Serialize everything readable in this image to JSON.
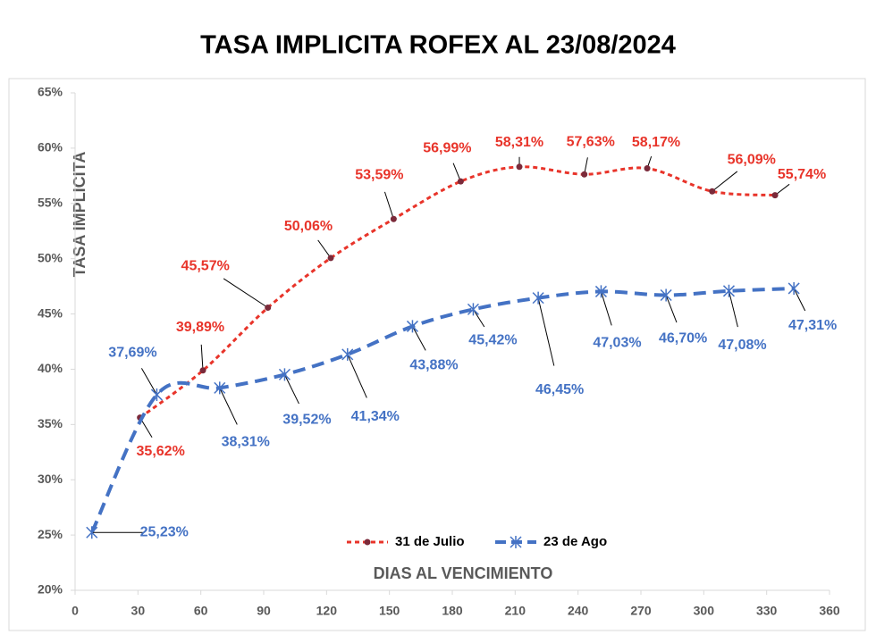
{
  "chart_data": {
    "type": "line",
    "title": "TASA IMPLICITA ROFEX AL 23/08/2024",
    "x_label": "DIAS AL VENCIMIENTO",
    "y_label": "TASA IMPLICITA",
    "xlim": [
      0,
      360
    ],
    "xticks": [
      0,
      30,
      60,
      90,
      120,
      150,
      180,
      210,
      240,
      270,
      300,
      330,
      360
    ],
    "ylim": [
      20,
      65
    ],
    "yticks": [
      {
        "value": 20,
        "label": "20%"
      },
      {
        "value": 25,
        "label": "25%"
      },
      {
        "value": 30,
        "label": "30%"
      },
      {
        "value": 35,
        "label": "35%"
      },
      {
        "value": 40,
        "label": "40%"
      },
      {
        "value": 45,
        "label": "45%"
      },
      {
        "value": 50,
        "label": "50%"
      },
      {
        "value": 55,
        "label": "55%"
      },
      {
        "value": 60,
        "label": "60%"
      },
      {
        "value": 65,
        "label": "65%"
      }
    ],
    "legend": "bottom",
    "series": [
      {
        "name": "31 de Julio",
        "color": "#e8342a",
        "x": [
          31,
          61,
          92,
          122,
          152,
          184,
          212,
          243,
          273,
          304,
          334
        ],
        "values": [
          35.62,
          39.89,
          45.57,
          50.06,
          53.59,
          56.99,
          58.31,
          57.63,
          58.17,
          56.09,
          55.74
        ],
        "value_labels": [
          "35,62%",
          "39,89%",
          "45,57%",
          "50,06%",
          "53,59%",
          "56,99%",
          "58,31%",
          "57,63%",
          "58,17%",
          "56,09%",
          "55,74%"
        ]
      },
      {
        "name": "23 de Ago",
        "color": "#4472c4",
        "x": [
          8,
          39,
          69,
          100,
          130,
          161,
          190,
          221,
          251,
          282,
          312,
          343
        ],
        "values": [
          25.23,
          37.69,
          38.31,
          39.52,
          41.34,
          43.88,
          45.42,
          46.45,
          47.03,
          46.7,
          47.08,
          47.31
        ],
        "value_labels": [
          "25,23%",
          "37,69%",
          "38,31%",
          "39,52%",
          "41,34%",
          "43,88%",
          "45,42%",
          "46,45%",
          "47,03%",
          "46,70%",
          "47,08%",
          "47,31%"
        ]
      }
    ]
  }
}
